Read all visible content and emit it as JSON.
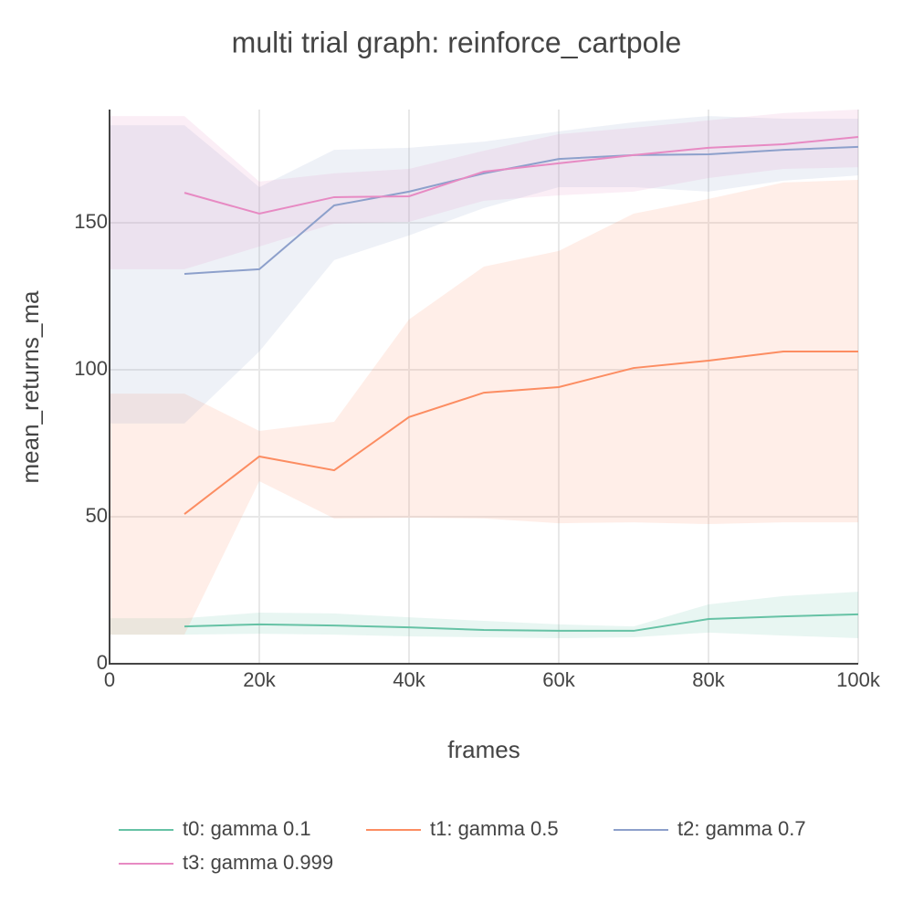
{
  "chart_data": {
    "type": "line",
    "title": "multi trial graph: reinforce_cartpole",
    "x_label": "frames",
    "y_label": "mean_returns_ma",
    "x": [
      0,
      10000,
      20000,
      30000,
      40000,
      50000,
      60000,
      70000,
      80000,
      90000,
      100000
    ],
    "xlim": [
      0,
      100000
    ],
    "xticks": [
      0,
      {
        "value": 20000,
        "label": "20k"
      },
      {
        "value": 40000,
        "label": "40k"
      },
      {
        "value": 60000,
        "label": "60k"
      },
      {
        "value": 80000,
        "label": "80k"
      },
      {
        "value": 100000,
        "label": "100k"
      }
    ],
    "ylim": [
      0,
      188.5
    ],
    "yticks": [
      0,
      50,
      100,
      150
    ],
    "grid": true,
    "legend": "bottom",
    "series": [
      {
        "name": "t0: gamma 0.1",
        "color": "#66c2a5",
        "values": [
          null,
          12.7,
          13.4,
          13.0,
          12.4,
          11.5,
          11.2,
          11.2,
          15.2,
          16.1,
          16.8
        ],
        "upper": [
          15.5,
          15.5,
          17.4,
          17.1,
          15.8,
          14.6,
          13.4,
          12.7,
          20.2,
          23.0,
          24.5
        ],
        "lower": [
          9.9,
          9.9,
          10.2,
          9.9,
          9.3,
          9.0,
          8.7,
          9.0,
          10.6,
          9.6,
          8.7
        ]
      },
      {
        "name": "t1: gamma 0.5",
        "color": "#fc8d62",
        "values": [
          null,
          50.9,
          70.5,
          65.8,
          83.9,
          92.2,
          94.1,
          100.6,
          103.1,
          106.2,
          106.2
        ],
        "upper": [
          91.9,
          91.9,
          79.2,
          82.3,
          117.1,
          135.1,
          140.4,
          153.1,
          158.1,
          163.7,
          164.6
        ],
        "lower": [
          9.9,
          9.9,
          62.1,
          49.4,
          49.7,
          49.4,
          47.8,
          48.1,
          47.5,
          48.1,
          48.1
        ]
      },
      {
        "name": "t2: gamma 0.7",
        "color": "#8da0cb",
        "values": [
          null,
          132.6,
          134.2,
          155.9,
          160.6,
          166.8,
          171.7,
          173.0,
          173.3,
          174.8,
          175.8
        ],
        "upper": [
          183.2,
          183.2,
          162.1,
          174.8,
          175.5,
          177.6,
          181.1,
          184.2,
          186.3,
          185.4,
          185.4
        ],
        "lower": [
          81.7,
          81.7,
          106.2,
          137.3,
          145.7,
          155.0,
          162.1,
          162.1,
          160.6,
          164.3,
          166.1
        ]
      },
      {
        "name": "t3: gamma 0.999",
        "color": "#e78ac3",
        "values": [
          null,
          160.2,
          153.1,
          158.7,
          159.0,
          167.4,
          170.2,
          173.0,
          175.5,
          176.7,
          179.2
        ],
        "upper": [
          186.3,
          186.3,
          164.0,
          166.8,
          168.3,
          174.5,
          180.1,
          182.3,
          184.8,
          187.3,
          188.5
        ],
        "lower": [
          134.2,
          134.2,
          141.9,
          149.7,
          150.3,
          157.5,
          159.3,
          160.6,
          165.2,
          168.3,
          168.9
        ]
      }
    ]
  }
}
